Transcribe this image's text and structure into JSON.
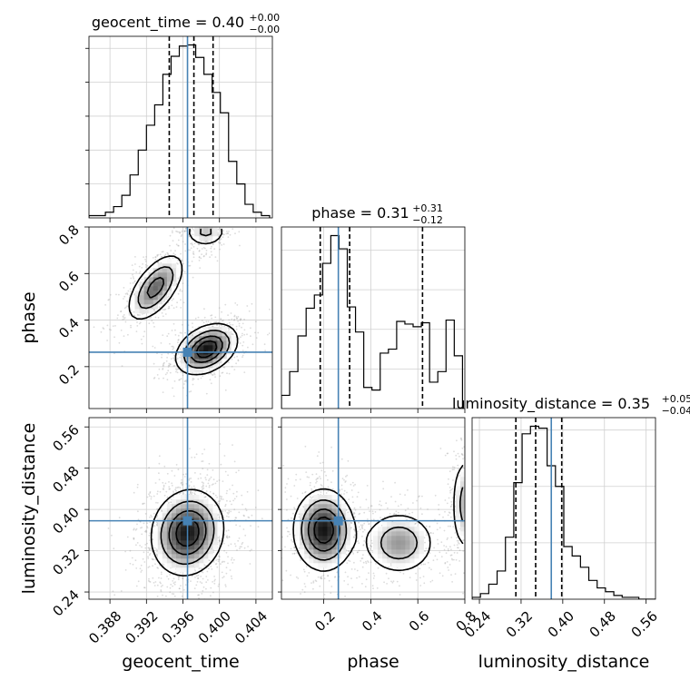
{
  "chart_data": {
    "type": "corner",
    "parameters": [
      "geocent_time",
      "phase",
      "luminosity_distance"
    ],
    "truths": {
      "geocent_time": 0.3965,
      "phase": 0.262,
      "luminosity_distance": 0.378
    },
    "truth_color": "#4682b4",
    "quantiles": {
      "geocent_time": [
        0.3945,
        0.3972,
        0.3993
      ],
      "phase": [
        0.185,
        0.31,
        0.62
      ],
      "luminosity_distance": [
        0.31,
        0.348,
        0.398
      ]
    },
    "titles": {
      "geocent_time": {
        "label": "geocent_time = 0.40",
        "plus": "+0.00",
        "minus": "−0.00"
      },
      "phase": {
        "label": "phase = 0.31",
        "plus": "+0.31",
        "minus": "−0.12"
      },
      "luminosity_distance": {
        "label": "luminosity_distance = 0.35",
        "plus": "+0.05",
        "minus": "−0.04"
      }
    },
    "ranges": {
      "geocent_time": [
        0.3857,
        0.4058
      ],
      "phase": [
        0.02,
        0.8
      ],
      "luminosity_distance": [
        0.226,
        0.578
      ]
    },
    "axis_labels": {
      "x": [
        "geocent_time",
        "phase",
        "luminosity_distance"
      ],
      "y": [
        "phase",
        "luminosity_distance"
      ]
    },
    "ticks": {
      "geocent_time": [
        "0.388",
        "0.392",
        "0.396",
        "0.400",
        "0.404"
      ],
      "phase": [
        "0.2",
        "0.4",
        "0.6",
        "0.8"
      ],
      "luminosity_distance": [
        "0.24",
        "0.32",
        "0.40",
        "0.48",
        "0.56"
      ]
    },
    "histograms": {
      "geocent_time": {
        "edges": [
          0.3857,
          0.3866,
          0.3875,
          0.3884,
          0.3893,
          0.3902,
          0.3911,
          0.392,
          0.3929,
          0.3938,
          0.3947,
          0.3956,
          0.3965,
          0.3974,
          0.3983,
          0.3992,
          0.4001,
          0.401,
          0.4019,
          0.4028,
          0.4037,
          0.4046,
          0.4055
        ],
        "counts": [
          2,
          2,
          5,
          10,
          20,
          38,
          60,
          82,
          100,
          127,
          143,
          152,
          153,
          142,
          127,
          111,
          93,
          50,
          30,
          12,
          5,
          2
        ]
      },
      "phase": {
        "edges": [
          0.02,
          0.055,
          0.09,
          0.125,
          0.16,
          0.195,
          0.23,
          0.265,
          0.3,
          0.335,
          0.37,
          0.405,
          0.44,
          0.475,
          0.51,
          0.545,
          0.58,
          0.615,
          0.65,
          0.685,
          0.72,
          0.755,
          0.79
        ],
        "counts": [
          10,
          28,
          55,
          76,
          86,
          110,
          131,
          121,
          77,
          58,
          16,
          14,
          42,
          45,
          66,
          64,
          62,
          65,
          20,
          28,
          67,
          40
        ]
      },
      "luminosity_distance": {
        "edges": [
          0.226,
          0.242,
          0.258,
          0.274,
          0.29,
          0.306,
          0.322,
          0.338,
          0.354,
          0.37,
          0.386,
          0.402,
          0.418,
          0.434,
          0.45,
          0.466,
          0.482,
          0.498,
          0.514,
          0.53,
          0.546,
          0.562,
          0.578
        ],
        "counts": [
          1,
          3,
          8,
          15,
          33,
          62,
          88,
          92,
          91,
          71,
          60,
          28,
          23,
          17,
          10,
          6,
          4,
          2,
          1,
          1,
          0,
          0
        ]
      }
    },
    "modes": {
      "geocent_time_phase": [
        {
          "x": 0.3986,
          "y": 0.275,
          "sx": 0.0017,
          "sy": 0.055,
          "rho": 0.35,
          "w": 1.0
        },
        {
          "x": 0.393,
          "y": 0.54,
          "sx": 0.0016,
          "sy": 0.075,
          "rho": 0.6,
          "w": 0.7
        },
        {
          "x": 0.3985,
          "y": 0.78,
          "sx": 0.0012,
          "sy": 0.035,
          "rho": 0.0,
          "w": 0.4
        }
      ],
      "geocent_time_luminosity_distance": [
        {
          "x": 0.3965,
          "y": 0.355,
          "sx": 0.002,
          "sy": 0.042,
          "rho": 0.1,
          "w": 1.0
        }
      ],
      "phase_luminosity_distance": [
        {
          "x": 0.2,
          "y": 0.36,
          "sx": 0.065,
          "sy": 0.04,
          "rho": 0.0,
          "w": 1.0
        },
        {
          "x": 0.52,
          "y": 0.335,
          "sx": 0.08,
          "sy": 0.032,
          "rho": 0.0,
          "w": 0.55
        },
        {
          "x": 0.8,
          "y": 0.41,
          "sx": 0.03,
          "sy": 0.05,
          "rho": 0.0,
          "w": 0.45
        }
      ]
    },
    "grid": true
  }
}
